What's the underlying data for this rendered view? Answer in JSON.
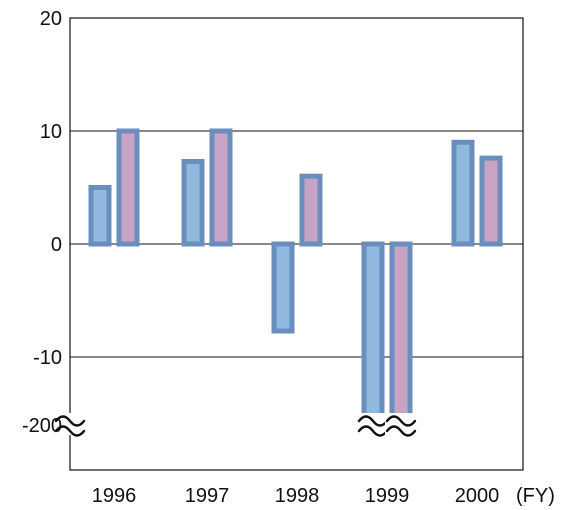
{
  "chart_data": {
    "type": "bar",
    "categories": [
      "1996",
      "1997",
      "1998",
      "1999",
      "2000"
    ],
    "x_unit_label": "(FY)",
    "series": [
      {
        "values": [
          5,
          7.3,
          -7.7,
          -190,
          9
        ],
        "color_fill": "#91b9de",
        "color_stroke": "#6a8fbf"
      },
      {
        "values": [
          10,
          10,
          6,
          -180,
          7.6
        ],
        "color_fill": "#c9a3c3",
        "color_stroke": "#6a8fbf"
      }
    ],
    "y_ticks": [
      "20",
      "10",
      "0",
      "-10",
      "-200"
    ],
    "ylim": [
      -200,
      20
    ],
    "axis_break": {
      "between": [
        -10,
        -200
      ],
      "symbol": "≈"
    },
    "grid": true
  }
}
